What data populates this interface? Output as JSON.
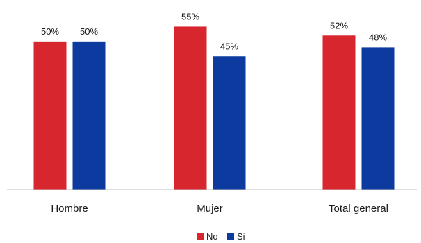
{
  "chart_data": {
    "type": "bar",
    "title": "",
    "xlabel": "",
    "ylabel": "",
    "categories": [
      "Hombre",
      "Mujer",
      "Total general"
    ],
    "series": [
      {
        "name": "No",
        "values": [
          50,
          55,
          52
        ],
        "labels": [
          "50%",
          "55%",
          "52%"
        ],
        "color": "#d7262e"
      },
      {
        "name": "Si",
        "values": [
          50,
          45,
          48
        ],
        "labels": [
          "50%",
          "45%",
          "48%"
        ],
        "color": "#0c3a9e"
      }
    ],
    "ylim": [
      0,
      60
    ],
    "grid": false,
    "legend": "bottom-center"
  }
}
